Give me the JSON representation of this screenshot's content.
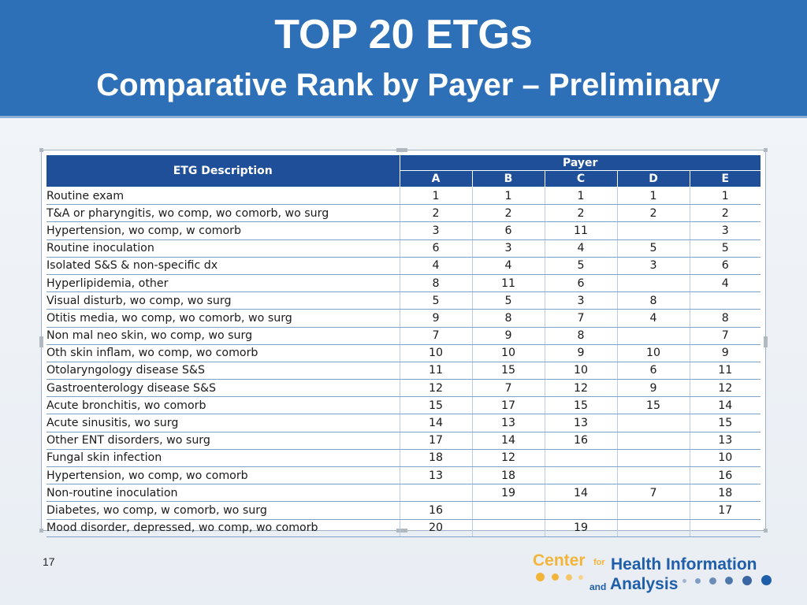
{
  "slide": {
    "title": "TOP 20 ETGs",
    "subtitle": "Comparative Rank by Payer – Preliminary",
    "page_number": "17"
  },
  "table": {
    "description_header": "ETG Description",
    "group_header": "Payer",
    "payer_columns": [
      "A",
      "B",
      "C",
      "D",
      "E"
    ],
    "rows": [
      {
        "name": "Routine exam",
        "ranks": [
          "1",
          "1",
          "1",
          "1",
          "1"
        ]
      },
      {
        "name": "T&A or pharyngitis, wo comp, wo comorb, wo surg",
        "ranks": [
          "2",
          "2",
          "2",
          "2",
          "2"
        ]
      },
      {
        "name": "Hypertension, wo comp, w comorb",
        "ranks": [
          "3",
          "6",
          "11",
          "",
          "3"
        ]
      },
      {
        "name": "Routine inoculation",
        "ranks": [
          "6",
          "3",
          "4",
          "5",
          "5"
        ]
      },
      {
        "name": "Isolated S&S & non-specific dx",
        "ranks": [
          "4",
          "4",
          "5",
          "3",
          "6"
        ]
      },
      {
        "name": "Hyperlipidemia, other",
        "ranks": [
          "8",
          "11",
          "6",
          "",
          "4"
        ]
      },
      {
        "name": "Visual disturb, wo comp, wo surg",
        "ranks": [
          "5",
          "5",
          "3",
          "8",
          ""
        ]
      },
      {
        "name": "Otitis media, wo comp, wo comorb, wo surg",
        "ranks": [
          "9",
          "8",
          "7",
          "4",
          "8"
        ]
      },
      {
        "name": "Non mal neo skin, wo comp, wo surg",
        "ranks": [
          "7",
          "9",
          "8",
          "",
          "7"
        ]
      },
      {
        "name": "Oth skin inflam, wo comp, wo comorb",
        "ranks": [
          "10",
          "10",
          "9",
          "10",
          "9"
        ]
      },
      {
        "name": "Otolaryngology disease S&S",
        "ranks": [
          "11",
          "15",
          "10",
          "6",
          "11"
        ]
      },
      {
        "name": "Gastroenterology disease S&S",
        "ranks": [
          "12",
          "7",
          "12",
          "9",
          "12"
        ]
      },
      {
        "name": "Acute bronchitis, wo comorb",
        "ranks": [
          "15",
          "17",
          "15",
          "15",
          "14"
        ]
      },
      {
        "name": "Acute sinusitis, wo surg",
        "ranks": [
          "14",
          "13",
          "13",
          "",
          "15"
        ]
      },
      {
        "name": "Other ENT disorders, wo surg",
        "ranks": [
          "17",
          "14",
          "16",
          "",
          "13"
        ]
      },
      {
        "name": "Fungal skin infection",
        "ranks": [
          "18",
          "12",
          "",
          "",
          "10"
        ]
      },
      {
        "name": "Hypertension, wo comp, wo comorb",
        "ranks": [
          "13",
          "18",
          "",
          "",
          "16"
        ]
      },
      {
        "name": "Non-routine inoculation",
        "ranks": [
          "",
          "19",
          "14",
          "7",
          "18"
        ]
      },
      {
        "name": "Diabetes, wo comp, w comorb, wo surg",
        "ranks": [
          "16",
          "",
          "",
          "",
          "17"
        ]
      },
      {
        "name": "Mood disorder, depressed, wo comp, wo comorb",
        "ranks": [
          "20",
          "",
          "19",
          "",
          ""
        ]
      }
    ]
  },
  "logo": {
    "line1_word": "Center",
    "line1_small": "for",
    "line1_bold": "Health Information",
    "line2_small": "and",
    "line2_bold": "Analysis",
    "colors": {
      "gold": "#f2b53a",
      "blue": "#1f5ea8"
    }
  },
  "colors": {
    "header_bg": "#2d70b8",
    "table_header_bg": "#1f4f99",
    "row_rule": "#7da0cc"
  }
}
